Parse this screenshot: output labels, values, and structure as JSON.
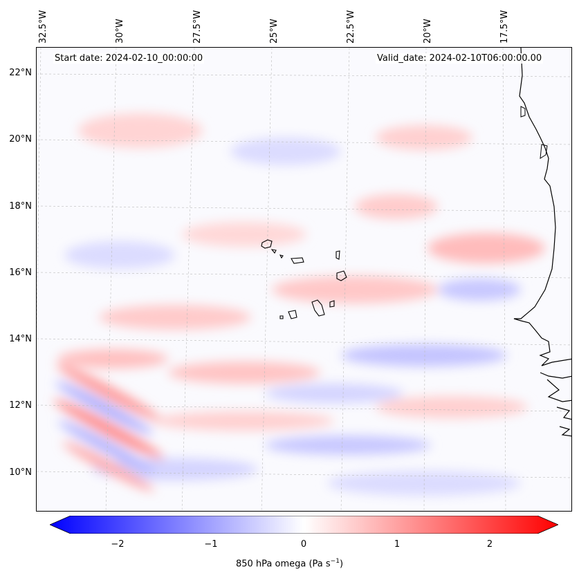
{
  "map": {
    "start_date": "Start date: 2024-02-10_00:00:00",
    "valid_date": "Valid_date: 2024-02-10T06:00:00.00",
    "lon_labels": [
      "32.5°W",
      "30°W",
      "27.5°W",
      "25°W",
      "22.5°W",
      "20°W",
      "17.5°W"
    ],
    "lat_labels": [
      "22°N",
      "20°N",
      "18°N",
      "16°N",
      "14°N",
      "12°N",
      "10°N"
    ],
    "colors": {
      "negative": "#0000ff",
      "positive": "#ff0000",
      "neutral": "#ffffff",
      "coastline": "#000000"
    }
  },
  "colorbar": {
    "ticks": [
      "−2",
      "−1",
      "0",
      "1",
      "2"
    ],
    "label_text": "850 hPa omega (Pa s",
    "label_exp": "−1",
    "label_close": ")",
    "range": [
      -2.5,
      2.5
    ]
  }
}
